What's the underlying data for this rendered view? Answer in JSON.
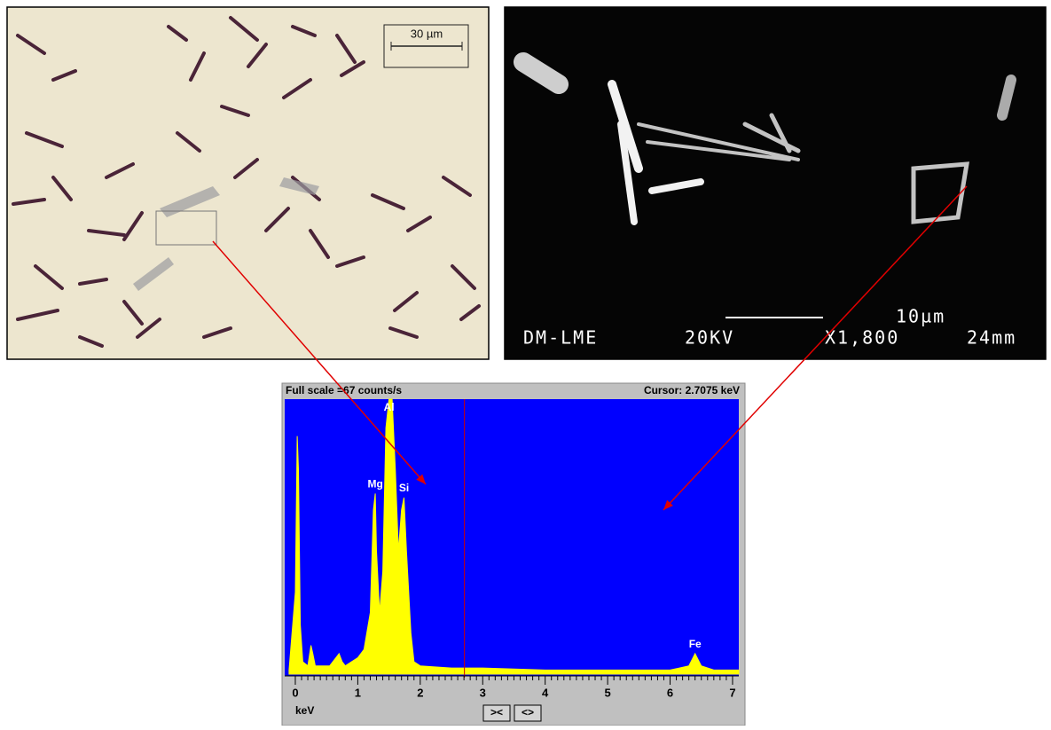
{
  "optical_image": {
    "scale_bar": "30 µm"
  },
  "sem_image": {
    "scale_bar": "10µm",
    "info": [
      "DM-LME",
      "20KV",
      "X1,800",
      "24mm"
    ]
  },
  "chart_data": {
    "type": "area",
    "header_left": "Full scale =67 counts/s",
    "cursor": {
      "value": 2.7075,
      "label": "Cursor: 2.7075 keV"
    },
    "x_label": "keV",
    "buttons": [
      "><",
      "<>"
    ],
    "color": "#ffff00",
    "background": "#0000ff",
    "xlim": [
      -0.17,
      7.1
    ],
    "ylim": [
      0,
      67
    ],
    "xticks": [
      0,
      1,
      2,
      3,
      4,
      5,
      6,
      7
    ],
    "x": [
      -0.1,
      0,
      0.03,
      0.05,
      0.08,
      0.12,
      0.2,
      0.25,
      0.28,
      0.32,
      0.4,
      0.55,
      0.7,
      0.75,
      0.8,
      0.9,
      1.0,
      1.1,
      1.2,
      1.25,
      1.28,
      1.3,
      1.35,
      1.4,
      1.45,
      1.5,
      1.55,
      1.6,
      1.65,
      1.7,
      1.74,
      1.78,
      1.85,
      1.9,
      2.0,
      2.5,
      3.0,
      4.0,
      5.0,
      6.0,
      6.3,
      6.4,
      6.5,
      6.7,
      7.1
    ],
    "values": [
      1,
      20,
      58,
      50,
      12,
      3,
      2,
      7,
      5,
      2,
      2,
      2,
      5,
      3,
      2,
      3,
      4,
      6,
      15,
      40,
      44,
      30,
      15,
      25,
      60,
      67,
      67,
      50,
      30,
      40,
      43,
      30,
      10,
      3,
      2,
      1.5,
      1.5,
      1,
      1,
      1,
      2,
      5,
      2,
      1,
      1
    ],
    "annotations": [
      {
        "text": "Al",
        "x": 1.5
      },
      {
        "text": "Mg",
        "x": 1.28
      },
      {
        "text": "Si",
        "x": 1.74
      },
      {
        "text": "Fe",
        "x": 6.4
      }
    ]
  }
}
